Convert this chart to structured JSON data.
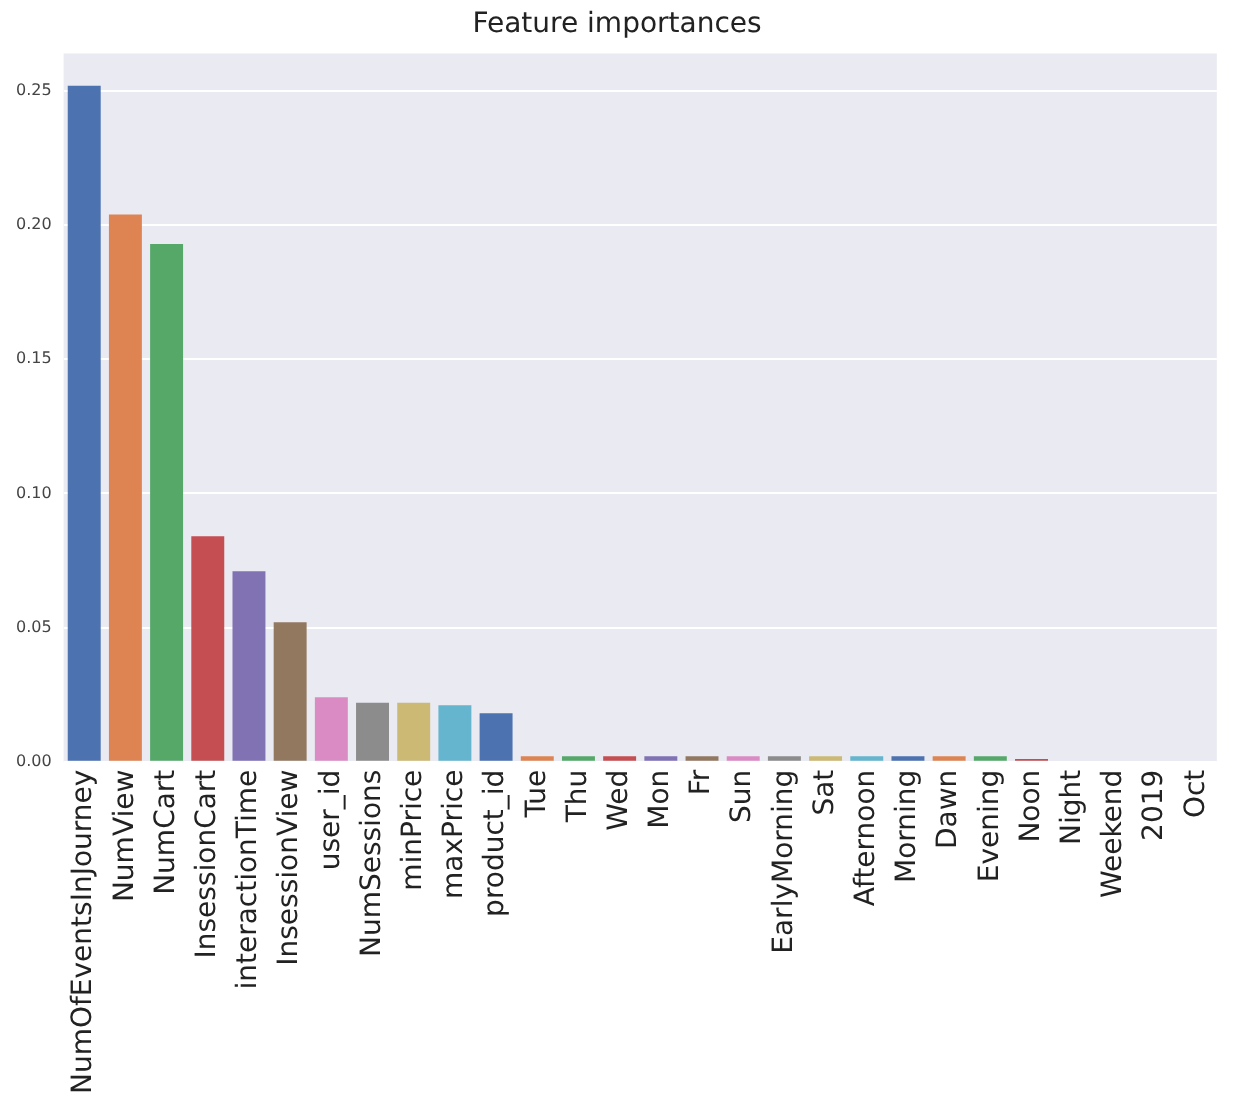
{
  "chart_data": {
    "type": "bar",
    "title": "Feature importances",
    "categories": [
      "NumOfEventsInJourney",
      "NumView",
      "NumCart",
      "InsessionCart",
      "interactionTime",
      "InsessionView",
      "user_id",
      "NumSessions",
      "minPrice",
      "maxPrice",
      "product_id",
      "Tue",
      "Thu",
      "Wed",
      "Mon",
      "Fr",
      "Sun",
      "EarlyMorning",
      "Sat",
      "Afternoon",
      "Morning",
      "Dawn",
      "Evening",
      "Noon",
      "Night",
      "Weekend",
      "2019",
      "Oct"
    ],
    "values": [
      0.252,
      0.204,
      0.193,
      0.084,
      0.071,
      0.052,
      0.024,
      0.022,
      0.022,
      0.021,
      0.018,
      0.002,
      0.002,
      0.002,
      0.002,
      0.002,
      0.002,
      0.002,
      0.002,
      0.002,
      0.002,
      0.002,
      0.002,
      0.001,
      0,
      0,
      0,
      0
    ],
    "colors": [
      "#4c72b0",
      "#dd8452",
      "#55a868",
      "#c44e52",
      "#8172b3",
      "#937860",
      "#da8bc3",
      "#8c8c8c",
      "#ccb974",
      "#64b5cd",
      "#4c72b0",
      "#dd8452",
      "#55a868",
      "#c44e52",
      "#8172b3",
      "#937860",
      "#da8bc3",
      "#8c8c8c",
      "#ccb974",
      "#64b5cd",
      "#4c72b0",
      "#dd8452",
      "#55a868",
      "#c44e52",
      "#8172b3",
      "#937860",
      "#da8bc3",
      "#8c8c8c"
    ],
    "ylim": [
      0,
      0.264
    ],
    "yticks": [
      {
        "value": 0,
        "label": "0.00"
      },
      {
        "value": 0.05,
        "label": "0.05"
      },
      {
        "value": 0.1,
        "label": "0.10"
      },
      {
        "value": 0.15,
        "label": "0.15"
      },
      {
        "value": 0.2,
        "label": "0.20"
      },
      {
        "value": 0.25,
        "label": "0.25"
      }
    ],
    "grid": "y"
  }
}
